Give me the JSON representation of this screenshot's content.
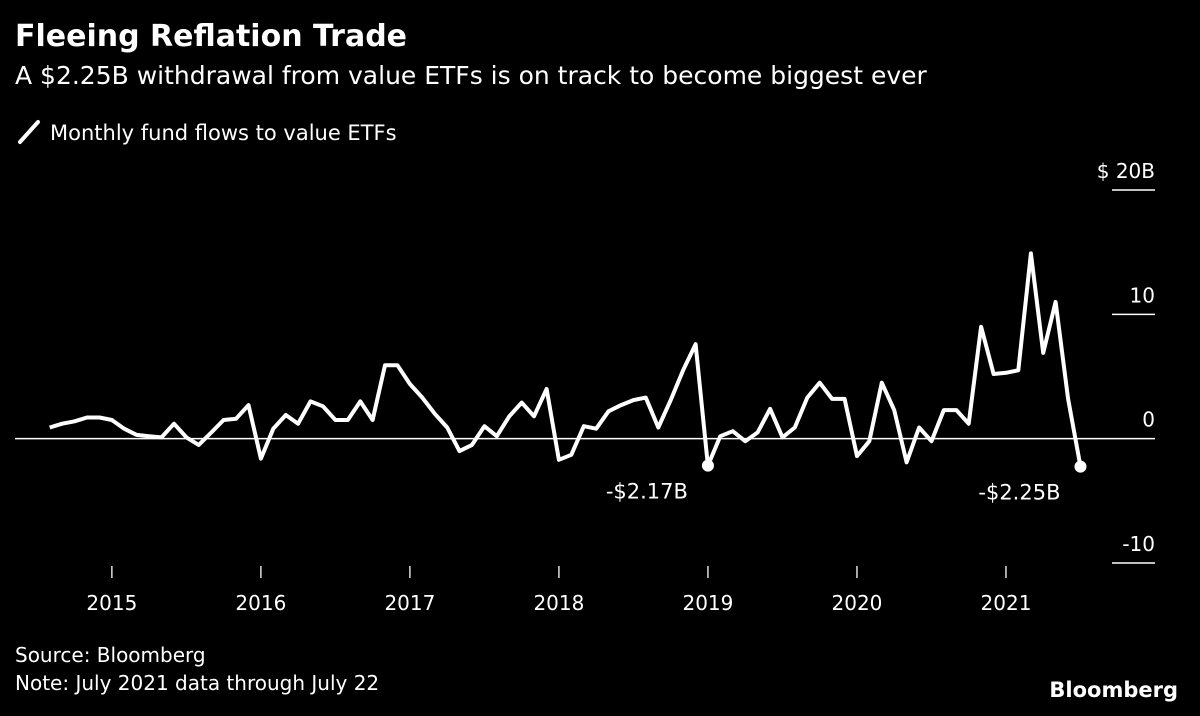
{
  "chart_data": {
    "type": "line",
    "title": "Fleeing Reflation Trade",
    "subtitle": "A $2.25B withdrawal from value ETFs is on track to become biggest ever",
    "source": "Source: Bloomberg",
    "note": "Note: July 2021 data through July 22",
    "brand": "Bloomberg",
    "x": [
      2014.583,
      2014.667,
      2014.75,
      2014.833,
      2014.917,
      2015.0,
      2015.083,
      2015.167,
      2015.25,
      2015.333,
      2015.417,
      2015.5,
      2015.583,
      2015.667,
      2015.75,
      2015.833,
      2015.917,
      2016.0,
      2016.083,
      2016.167,
      2016.25,
      2016.333,
      2016.417,
      2016.5,
      2016.583,
      2016.667,
      2016.75,
      2016.833,
      2016.917,
      2017.0,
      2017.083,
      2017.167,
      2017.25,
      2017.333,
      2017.417,
      2017.5,
      2017.583,
      2017.667,
      2017.75,
      2017.833,
      2017.917,
      2018.0,
      2018.083,
      2018.167,
      2018.25,
      2018.333,
      2018.417,
      2018.5,
      2018.583,
      2018.667,
      2018.75,
      2018.833,
      2018.917,
      2019.0,
      2019.083,
      2019.167,
      2019.25,
      2019.333,
      2019.417,
      2019.5,
      2019.583,
      2019.667,
      2019.75,
      2019.833,
      2019.917,
      2020.0,
      2020.083,
      2020.167,
      2020.25,
      2020.333,
      2020.417,
      2020.5,
      2020.583,
      2020.667,
      2020.75,
      2020.833,
      2020.917,
      2021.0,
      2021.083,
      2021.167,
      2021.25,
      2021.333,
      2021.417,
      2021.5
    ],
    "series": [
      {
        "name": "Monthly fund flows to value ETFs",
        "color": "#ffffff",
        "values": [
          0.9,
          1.2,
          1.4,
          1.7,
          1.7,
          1.5,
          0.8,
          0.3,
          0.2,
          0.1,
          1.2,
          0.1,
          -0.5,
          0.5,
          1.5,
          1.6,
          2.7,
          -1.6,
          0.8,
          1.9,
          1.2,
          3.0,
          2.6,
          1.5,
          1.5,
          3.0,
          1.5,
          5.9,
          5.9,
          4.4,
          3.3,
          2.0,
          0.9,
          -1.0,
          -0.5,
          1.0,
          0.2,
          1.8,
          2.9,
          1.8,
          4.0,
          -1.7,
          -1.3,
          1.0,
          0.8,
          2.2,
          2.7,
          3.1,
          3.3,
          0.9,
          3.1,
          5.5,
          7.6,
          -2.17,
          0.2,
          0.6,
          -0.2,
          0.5,
          2.4,
          0.1,
          0.9,
          3.3,
          4.5,
          3.2,
          3.2,
          -1.4,
          -0.2,
          4.5,
          2.3,
          -1.9,
          0.9,
          -0.2,
          2.3,
          2.3,
          1.2,
          9.0,
          5.2,
          5.3,
          5.5,
          14.9,
          6.9,
          11.0,
          3.2,
          -2.25
        ],
        "value_labels": [
          null,
          null,
          null,
          null,
          null,
          null,
          null,
          null,
          null,
          null,
          null,
          null,
          null,
          null,
          null,
          null,
          null,
          null,
          null,
          null,
          null,
          null,
          null,
          null,
          null,
          null,
          null,
          null,
          null,
          null,
          null,
          null,
          null,
          null,
          null,
          null,
          null,
          null,
          null,
          null,
          null,
          null,
          null,
          null,
          null,
          null,
          null,
          null,
          null,
          null,
          null,
          null,
          null,
          "-$2.17B",
          null,
          null,
          null,
          null,
          null,
          null,
          null,
          null,
          null,
          null,
          null,
          null,
          null,
          null,
          null,
          null,
          null,
          null,
          null,
          null,
          null,
          null,
          null,
          null,
          null,
          null,
          null,
          null,
          null,
          "-$2.25B"
        ]
      }
    ],
    "xlim": [
      2014.35,
      2022.0
    ],
    "xticks": [
      2015,
      2016,
      2017,
      2018,
      2019,
      2020,
      2021
    ],
    "ylim": [
      -10,
      20
    ],
    "yticks": [
      {
        "value": 20,
        "label": "$ 20B"
      },
      10,
      0,
      -10
    ]
  }
}
